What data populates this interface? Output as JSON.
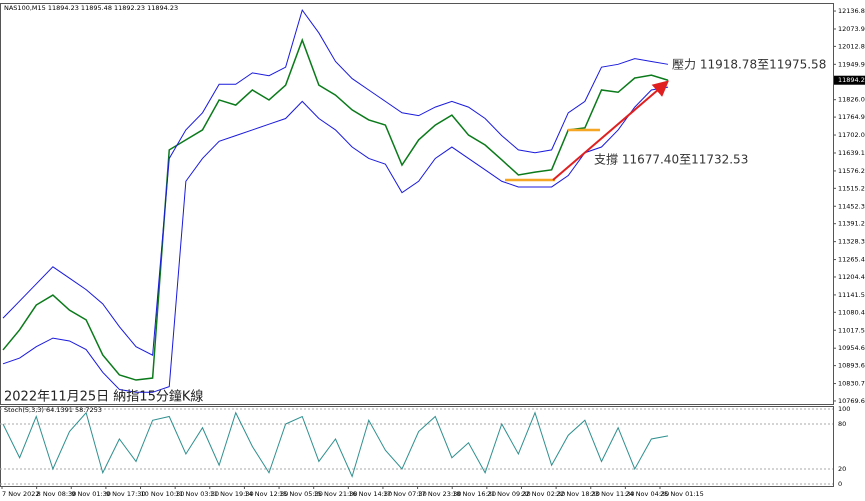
{
  "chart_data": {
    "type": "line",
    "title": "NAS100,M15  11894.23 11895.48 11892.23 11894.23",
    "caption": "2022年11月25日 納指15分鐘K線",
    "annotations": [
      "壓力 11918.78至11975.58",
      "支撐 11677.40至11732.53"
    ],
    "current_price": {
      "value": 11894.23,
      "label": "11894.23"
    },
    "x_labels": [
      "7 Nov 2022",
      "8 Nov 08:30",
      "9 Nov 01:30",
      "9 Nov 17:30",
      "10 Nov 10:30",
      "11 Nov 03:30",
      "11 Nov 19:30",
      "14 Nov 12:30",
      "15 Nov 05:30",
      "15 Nov 21:30",
      "16 Nov 14:30",
      "17 Nov 07:30",
      "17 Nov 23:30",
      "18 Nov 16:30",
      "21 Nov 09:30",
      "22 Nov 02:30",
      "22 Nov 18:30",
      "23 Nov 11:30",
      "24 Nov 04:30",
      "25 Nov 01:15"
    ],
    "ylim": [
      10759,
      12165
    ],
    "yticks": [
      {
        "value": 12136.8,
        "label": "12136.80"
      },
      {
        "value": 12073.9,
        "label": "12073.90"
      },
      12012.85,
      11949.95,
      {
        "value": 11826,
        "label": "11826.00"
      },
      11764.95,
      11702.05,
      11639.15,
      11576.25,
      {
        "value": 11515.2,
        "label": "11515.20"
      },
      {
        "value": 11452.3,
        "label": "11452.30"
      },
      11391.25,
      11328.35,
      11265.45,
      {
        "value": 11204.4,
        "label": "11204.40"
      },
      {
        "value": 11141.5,
        "label": "11141.50"
      },
      11080.45,
      11017.55,
      10954.65,
      {
        "value": 10893.6,
        "label": "10893.60"
      },
      {
        "value": 10830.7,
        "label": "10830.70"
      },
      10769.65
    ],
    "series": [
      {
        "color": "#0a7a1a",
        "values": [
          10948.6,
          11019,
          11106,
          11141,
          11088,
          11054,
          10931,
          10861,
          10843,
          10850,
          11650,
          11685,
          11720,
          11825,
          11807,
          11860,
          11825,
          11877,
          12035,
          11877,
          11842,
          11790,
          11755,
          11737,
          11597,
          11685,
          11737,
          11772,
          11702,
          11667,
          11615,
          11562,
          11572,
          11580,
          11720,
          11727,
          11860,
          11852,
          11902,
          11912,
          11894.23
        ]
      },
      {
        "color": "#1a1adc",
        "values": [
          11060,
          11120,
          11180,
          11240,
          11200,
          11160,
          11110,
          11030,
          10960,
          10930,
          11620,
          11720,
          11780,
          11880,
          11880,
          11920,
          11910,
          11940,
          12140,
          12060,
          11960,
          11900,
          11860,
          11820,
          11780,
          11770,
          11800,
          11820,
          11800,
          11760,
          11700,
          11650,
          11640,
          11650,
          11780,
          11820,
          11940,
          11950,
          11970,
          11960,
          11950
        ]
      },
      {
        "color": "#1a1adc",
        "values": [
          10900,
          10920,
          10960,
          10990,
          10980,
          10950,
          10870,
          10810,
          10800,
          10800,
          10820,
          11540,
          11620,
          11680,
          11700,
          11720,
          11740,
          11760,
          11820,
          11760,
          11720,
          11660,
          11620,
          11600,
          11500,
          11540,
          11620,
          11660,
          11620,
          11580,
          11540,
          11520,
          11520,
          11520,
          11560,
          11640,
          11660,
          11720,
          11800,
          11860,
          11870
        ]
      }
    ],
    "stoch": {
      "title": "Stoch(5,3,3) 64.1391 58.7253",
      "ylim": [
        -2.7,
        104
      ],
      "yticks": [
        100,
        80,
        20,
        0
      ],
      "color": "#2f8f8f",
      "values": [
        80,
        35,
        90,
        20,
        70,
        95,
        15,
        60,
        30,
        85,
        90,
        40,
        75,
        25,
        95,
        50,
        15,
        80,
        90,
        30,
        60,
        10,
        85,
        45,
        20,
        70,
        90,
        35,
        55,
        15,
        80,
        40,
        95,
        25,
        65,
        85,
        30,
        75,
        20,
        60,
        64.1391
      ]
    }
  }
}
